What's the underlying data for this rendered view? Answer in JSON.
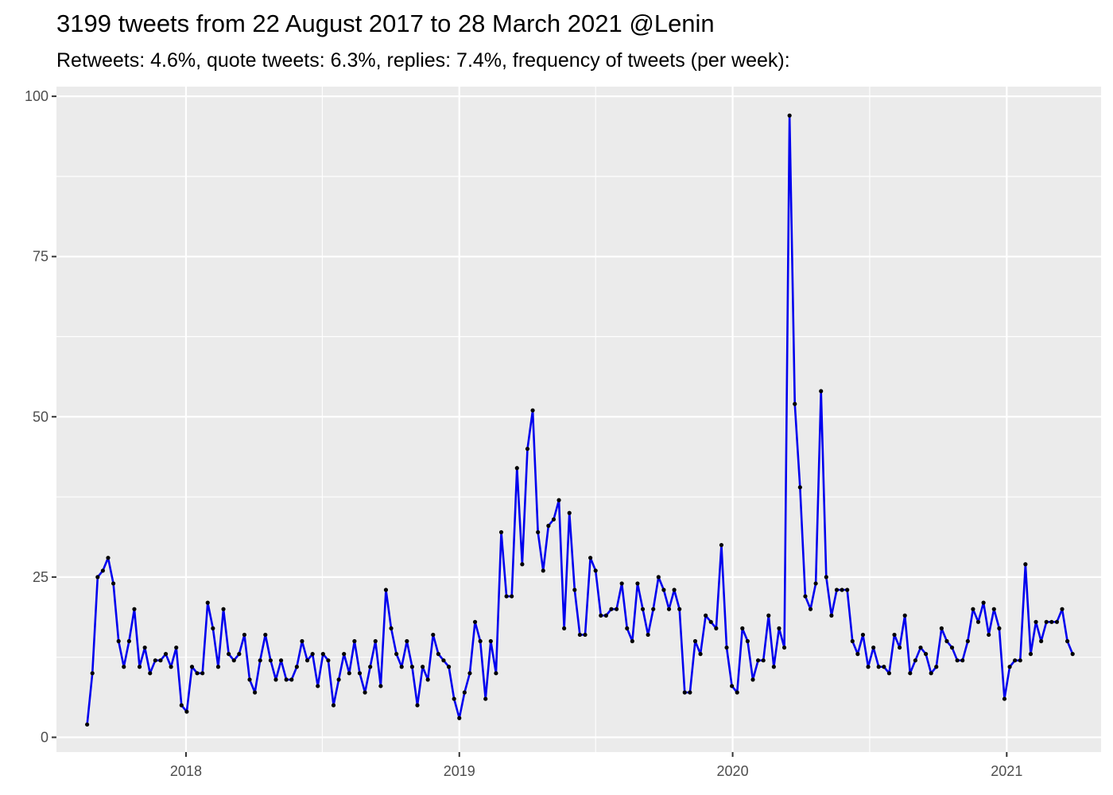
{
  "chart_data": {
    "type": "line",
    "title": "3199 tweets from 22 August 2017 to 28 March 2021 @Lenin",
    "subtitle": "Retweets: 4.6%, quote tweets: 6.3%, replies: 7.4%, frequency of tweets (per week):",
    "xlabel": "",
    "ylabel": "",
    "x_range": [
      "2017-07-12",
      "2021-05-07"
    ],
    "x_start": "2017-08-22",
    "x_step_days": 7,
    "ylim": [
      -2.3,
      101.5
    ],
    "y_ticks": [
      0,
      25,
      50,
      75,
      100
    ],
    "x_ticks": [
      {
        "label": "2018",
        "date": "2018-01-01"
      },
      {
        "label": "2019",
        "date": "2019-01-01"
      },
      {
        "label": "2020",
        "date": "2020-01-01"
      },
      {
        "label": "2021",
        "date": "2021-01-01"
      }
    ],
    "x_minor_ticks": [
      "2017-07-02",
      "2018-07-02",
      "2019-07-02",
      "2020-07-02"
    ],
    "grid": true,
    "line_color": "#0000ee",
    "point_color": "#000000",
    "panel_color": "#ebebeb",
    "values": [
      2,
      10,
      25,
      26,
      28,
      24,
      15,
      11,
      15,
      20,
      11,
      14,
      10,
      12,
      12,
      13,
      11,
      14,
      5,
      4,
      11,
      10,
      10,
      21,
      17,
      11,
      20,
      13,
      12,
      13,
      16,
      9,
      7,
      12,
      16,
      12,
      9,
      12,
      9,
      9,
      11,
      15,
      12,
      13,
      8,
      13,
      12,
      5,
      9,
      13,
      10,
      15,
      10,
      7,
      11,
      15,
      8,
      23,
      17,
      13,
      11,
      15,
      11,
      5,
      11,
      9,
      16,
      13,
      12,
      11,
      6,
      3,
      7,
      10,
      18,
      15,
      6,
      15,
      10,
      32,
      22,
      22,
      42,
      27,
      45,
      51,
      32,
      26,
      33,
      34,
      37,
      17,
      35,
      23,
      16,
      16,
      28,
      26,
      19,
      19,
      20,
      20,
      24,
      17,
      15,
      24,
      20,
      16,
      20,
      25,
      23,
      20,
      23,
      20,
      7,
      7,
      15,
      13,
      19,
      18,
      17,
      30,
      14,
      8,
      7,
      17,
      15,
      9,
      12,
      12,
      19,
      11,
      17,
      14,
      97,
      52,
      39,
      22,
      20,
      24,
      54,
      25,
      19,
      23,
      23,
      23,
      15,
      13,
      16,
      11,
      14,
      11,
      11,
      10,
      16,
      14,
      19,
      10,
      12,
      14,
      13,
      10,
      11,
      17,
      15,
      14,
      12,
      12,
      15,
      20,
      18,
      21,
      16,
      20,
      17,
      6,
      11,
      12,
      12,
      27,
      13,
      18,
      15,
      18,
      18,
      18,
      20,
      15,
      13
    ]
  }
}
